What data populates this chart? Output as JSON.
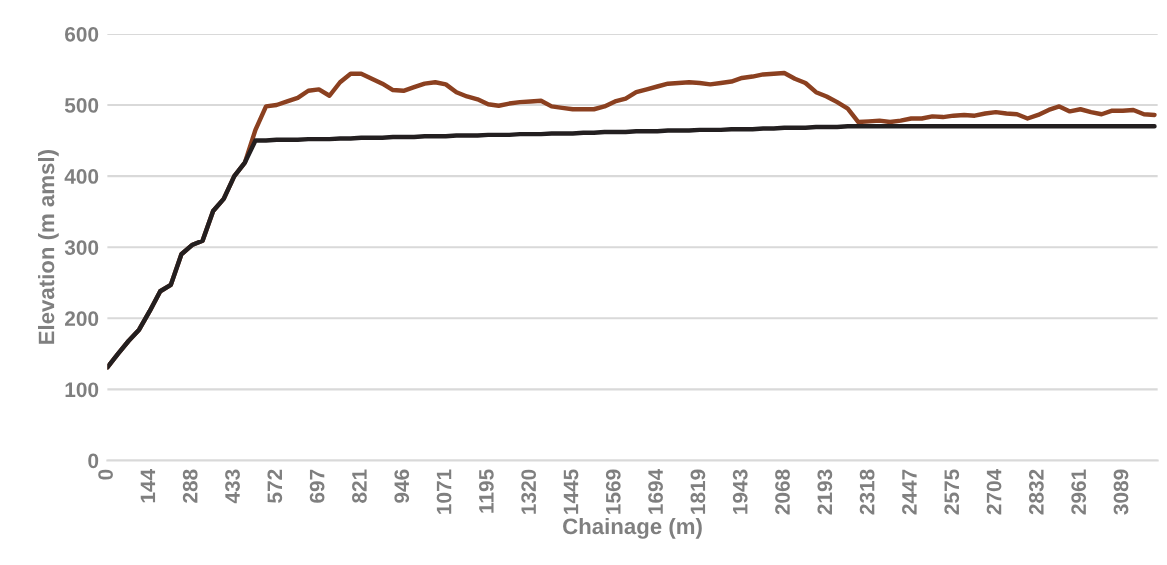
{
  "chart_data": {
    "type": "line",
    "xlabel": "Chainage (m)",
    "ylabel": "Elevation (m amsl)",
    "categories": [
      "0",
      null,
      null,
      null,
      "144",
      null,
      null,
      null,
      "288",
      null,
      null,
      null,
      "433",
      null,
      null,
      null,
      "572",
      null,
      null,
      null,
      "697",
      null,
      null,
      null,
      "821",
      null,
      null,
      null,
      "946",
      null,
      null,
      null,
      "1071",
      null,
      null,
      null,
      "1195",
      null,
      null,
      null,
      "1320",
      null,
      null,
      null,
      "1445",
      null,
      null,
      null,
      "1569",
      null,
      null,
      null,
      "1694",
      null,
      null,
      null,
      "1819",
      null,
      null,
      null,
      "1943",
      null,
      null,
      null,
      "2068",
      null,
      null,
      null,
      "2193",
      null,
      null,
      null,
      "2318",
      null,
      null,
      null,
      "2447",
      null,
      null,
      null,
      "2575",
      null,
      null,
      null,
      "2704",
      null,
      null,
      null,
      "2832",
      null,
      null,
      null,
      "2961",
      null,
      null,
      null,
      "3089",
      null,
      null,
      null
    ],
    "series": [
      {
        "color": "#8b4020",
        "values": [
          131,
          150,
          168,
          184,
          210,
          238,
          247,
          290,
          303,
          309,
          351,
          368,
          400,
          419,
          465,
          498,
          500,
          505,
          510,
          520,
          522,
          513,
          532,
          544,
          544,
          537,
          530,
          521,
          520,
          525,
          530,
          532,
          529,
          518,
          512,
          508,
          501,
          499,
          502,
          504,
          505,
          506,
          498,
          496,
          494,
          494,
          494,
          498,
          505,
          509,
          518,
          522,
          526,
          530,
          531,
          532,
          531,
          529,
          531,
          533,
          538,
          540,
          543,
          544,
          545,
          537,
          531,
          518,
          512,
          504,
          495,
          476,
          477,
          478,
          476,
          478,
          481,
          481,
          484,
          483,
          485,
          486,
          485,
          488,
          490,
          488,
          487,
          481,
          486,
          493,
          498,
          491,
          494,
          490,
          487,
          492,
          492,
          493,
          487,
          486
        ]
      },
      {
        "color": "#231f20",
        "values": [
          131,
          150,
          168,
          184,
          210,
          238,
          247,
          290,
          303,
          309,
          351,
          368,
          400,
          419,
          450,
          450,
          451,
          451,
          451,
          452,
          452,
          452,
          453,
          453,
          454,
          454,
          454,
          455,
          455,
          455,
          456,
          456,
          456,
          457,
          457,
          457,
          458,
          458,
          458,
          459,
          459,
          459,
          460,
          460,
          460,
          461,
          461,
          462,
          462,
          462,
          463,
          463,
          463,
          464,
          464,
          464,
          465,
          465,
          465,
          466,
          466,
          466,
          467,
          467,
          468,
          468,
          468,
          469,
          469,
          469,
          470,
          470,
          470,
          470,
          470,
          470,
          470,
          470,
          470,
          470,
          470,
          470,
          470,
          470,
          470,
          470,
          470,
          470,
          470,
          470,
          470,
          470,
          470,
          470,
          470,
          470,
          470,
          470,
          470,
          470
        ]
      }
    ],
    "ylim": [
      0,
      600
    ],
    "yticks": [
      0,
      100,
      200,
      300,
      400,
      500,
      600
    ],
    "grid": "y",
    "marker": "none",
    "line_style": "solid"
  }
}
